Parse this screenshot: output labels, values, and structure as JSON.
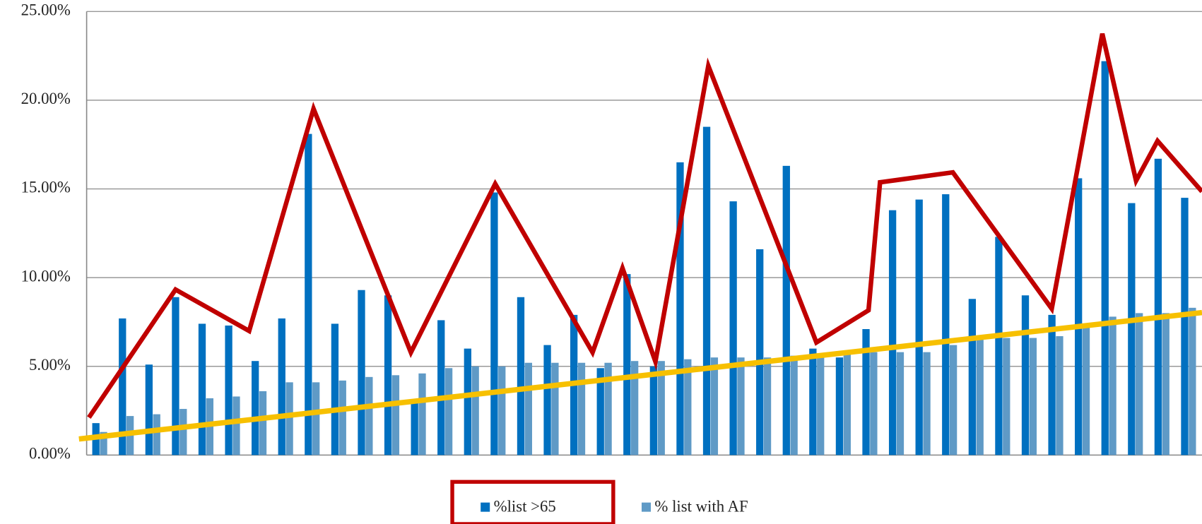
{
  "chart_data": {
    "type": "bar",
    "categories": [
      null,
      null,
      null,
      null,
      null,
      null,
      null,
      null,
      null,
      null,
      null,
      null,
      null,
      null,
      null,
      null,
      null,
      null,
      null,
      null,
      null,
      null,
      null,
      null,
      null,
      null,
      null,
      null,
      null,
      null,
      null,
      null,
      null,
      null,
      null,
      null,
      null,
      null,
      null,
      null,
      null,
      null
    ],
    "series": [
      {
        "name": "%list >65",
        "color": "#0070c0",
        "values": [
          1.8,
          7.7,
          5.1,
          8.9,
          7.4,
          7.3,
          5.3,
          7.7,
          18.1,
          7.4,
          9.3,
          9.0,
          3.0,
          7.6,
          6.0,
          14.8,
          8.9,
          6.2,
          7.9,
          4.9,
          10.2,
          5.0,
          16.5,
          18.5,
          14.3,
          11.6,
          16.3,
          6.0,
          5.5,
          7.1,
          13.8,
          14.4,
          14.7,
          8.8,
          12.3,
          9.0,
          7.9,
          15.6,
          22.2,
          14.2,
          16.7,
          14.5
        ]
      },
      {
        "name": "% list with AF",
        "color": "#5f9ac6",
        "values": [
          1.3,
          2.2,
          2.3,
          2.6,
          3.2,
          3.3,
          3.6,
          4.1,
          4.1,
          4.2,
          4.4,
          4.5,
          4.6,
          4.9,
          5.0,
          5.0,
          5.2,
          5.2,
          5.2,
          5.2,
          5.3,
          5.3,
          5.4,
          5.5,
          5.5,
          5.5,
          5.6,
          5.6,
          5.7,
          5.8,
          5.8,
          5.8,
          6.2,
          6.5,
          6.6,
          6.6,
          6.7,
          7.2,
          7.8,
          8.0,
          8.0,
          8.3
        ]
      }
    ],
    "ylim": [
      0,
      25
    ],
    "yticks": [
      {
        "value": 0,
        "label": "0.00%"
      },
      {
        "value": 5,
        "label": "5.00%"
      },
      {
        "value": 10,
        "label": "10.00%"
      },
      {
        "value": 15,
        "label": "15.00%"
      },
      {
        "value": 20,
        "label": "20.00%"
      },
      {
        "value": 25,
        "label": "25.00%"
      }
    ],
    "grid": true,
    "legend": "bottom"
  }
}
